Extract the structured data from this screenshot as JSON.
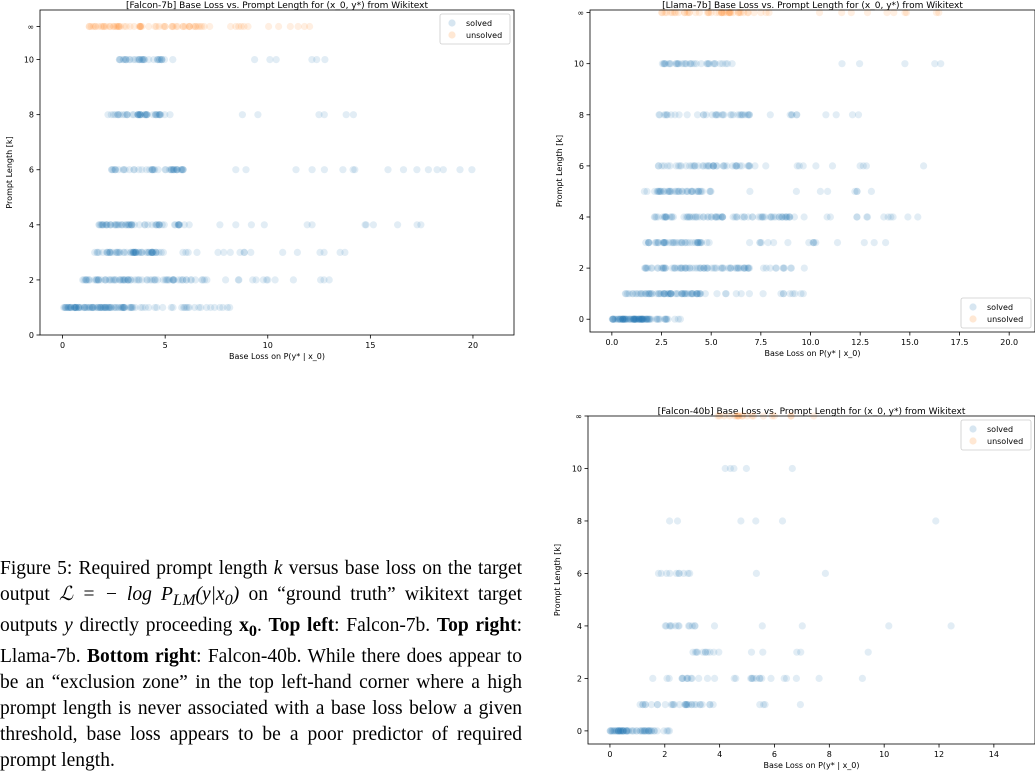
{
  "caption": {
    "figure_label": "Figure 5:",
    "text_1": "Required prompt length",
    "k_var": "k",
    "text_2": "versus base loss on the target output",
    "formula": "ℒ = − log P",
    "formula_sub": "LM",
    "formula_end": "(y|x",
    "formula_sub0": "0",
    "formula_close": ")",
    "text_3": "on “ground truth” wikitext target outputs",
    "y_var": "y",
    "text_4": "directly proceeding",
    "x0_var": "x",
    "x0_sub": "0",
    "text_5": ".",
    "top_left_label": "Top left",
    "top_left_value": ": Falcon-7b.",
    "top_right_label": "Top right",
    "top_right_value": ": Llama-7b.",
    "bottom_right_label": "Bottom right",
    "bottom_right_value": ": Falcon-40b.",
    "text_6": "While there does appear to be an “exclusion zone” in the top left-hand corner where a high prompt length is never associated with a base loss below a given threshold, base loss appears to be a poor predictor of required prompt length."
  },
  "colors": {
    "solved": "#1f77b4",
    "unsolved": "#ff7f0e"
  },
  "chart_data": [
    {
      "type": "scatter",
      "title": "[Falcon-7b] Base Loss vs. Prompt Length for (x_0, y*) from Wikitext",
      "xlabel": "Base Loss on P(y* | x_0)",
      "ylabel": "Prompt Length [k]",
      "xlim": [
        -1.1,
        22.0
      ],
      "ylim": [
        0,
        11.8
      ],
      "xticks": [
        0,
        5,
        10,
        15,
        20
      ],
      "xtick_labels": [
        "0",
        "5",
        "10",
        "15",
        "20"
      ],
      "yticks": [
        0,
        2,
        4,
        6,
        8,
        10,
        11.2
      ],
      "ytick_labels": [
        "0",
        "2",
        "4",
        "6",
        "8",
        "10",
        "∞"
      ],
      "legend": [
        "solved",
        "unsolved"
      ],
      "legend_position": "top-right",
      "series": [
        {
          "name": "solved",
          "rows": [
            {
              "y": 1,
              "from": 0.0,
              "to": 8.5,
              "count": 110,
              "dense_to": 3.5
            },
            {
              "y": 2,
              "from": 0.9,
              "to": 13.5,
              "count": 90,
              "dense_to": 6.5
            },
            {
              "y": 3,
              "from": 1.4,
              "to": 15.5,
              "count": 75,
              "dense_to": 5.0
            },
            {
              "y": 4,
              "from": 1.7,
              "to": 17.5,
              "count": 70,
              "dense_to": 6.0
            },
            {
              "y": 6,
              "from": 2.3,
              "to": 21.0,
              "count": 60,
              "dense_to": 6.0
            },
            {
              "y": 8,
              "from": 2.2,
              "to": 14.5,
              "count": 50,
              "dense_to": 5.0
            },
            {
              "y": 10,
              "from": 2.7,
              "to": 13.0,
              "count": 40,
              "dense_to": 5.0
            }
          ]
        },
        {
          "name": "unsolved",
          "rows": [
            {
              "y": 11.2,
              "from": 1.2,
              "to": 12.5,
              "count": 70,
              "dense_to": 7.0
            }
          ]
        }
      ]
    },
    {
      "type": "scatter",
      "title": "[Llama-7b] Base Loss vs. Prompt Length for (x_0, y*) from Wikitext",
      "xlabel": "Base Loss on P(y* | x_0)",
      "ylabel": "Prompt Length [k]",
      "xlim": [
        -1.1,
        21.3
      ],
      "ylim": [
        -0.5,
        12.1
      ],
      "xticks": [
        0,
        2.5,
        5,
        7.5,
        10,
        12.5,
        15,
        17.5,
        20
      ],
      "xtick_labels": [
        "0.0",
        "2.5",
        "5.0",
        "7.5",
        "10.0",
        "12.5",
        "15.0",
        "17.5",
        "20.0"
      ],
      "yticks": [
        0,
        2,
        4,
        6,
        8,
        10,
        12
      ],
      "ytick_labels": [
        "0",
        "2",
        "4",
        "6",
        "8",
        "10",
        "∞"
      ],
      "legend": [
        "solved",
        "unsolved"
      ],
      "legend_position": "bottom-right",
      "series": [
        {
          "name": "solved",
          "rows": [
            {
              "y": 0,
              "from": 0.0,
              "to": 3.5,
              "count": 90,
              "dense_to": 2.0
            },
            {
              "y": 1,
              "from": 0.6,
              "to": 9.8,
              "count": 80,
              "dense_to": 4.5
            },
            {
              "y": 2,
              "from": 1.5,
              "to": 10.5,
              "count": 80,
              "dense_to": 7.0
            },
            {
              "y": 3,
              "from": 1.4,
              "to": 14.0,
              "count": 60,
              "dense_to": 5.0
            },
            {
              "y": 4,
              "from": 2.0,
              "to": 15.5,
              "count": 90,
              "dense_to": 9.0
            },
            {
              "y": 5,
              "from": 1.6,
              "to": 14.0,
              "count": 50,
              "dense_to": 5.0
            },
            {
              "y": 6,
              "from": 2.3,
              "to": 16.0,
              "count": 55,
              "dense_to": 7.0
            },
            {
              "y": 8,
              "from": 2.3,
              "to": 13.0,
              "count": 45,
              "dense_to": 7.0
            },
            {
              "y": 10,
              "from": 2.3,
              "to": 17.0,
              "count": 40,
              "dense_to": 6.0
            }
          ]
        },
        {
          "name": "unsolved",
          "rows": [
            {
              "y": 12,
              "from": 2.3,
              "to": 17.0,
              "count": 55,
              "dense_to": 8.0
            }
          ]
        }
      ]
    },
    {
      "type": "scatter",
      "title": "[Falcon-40b] Base Loss vs. Prompt Length for (x_0, y*) from Wikitext",
      "xlabel": "Base Loss on P(y* | x_0)",
      "ylabel": "Prompt Length [k]",
      "xlim": [
        -0.8,
        15.5
      ],
      "ylim": [
        -0.5,
        12.0
      ],
      "xticks": [
        0,
        2,
        4,
        6,
        8,
        10,
        12,
        14
      ],
      "xtick_labels": [
        "0",
        "2",
        "4",
        "6",
        "8",
        "10",
        "12",
        "14"
      ],
      "yticks": [
        0,
        2,
        4,
        6,
        8,
        10,
        12
      ],
      "ytick_labels": [
        "0",
        "2",
        "4",
        "6",
        "8",
        "10",
        "∞"
      ],
      "legend": [
        "solved",
        "unsolved"
      ],
      "legend_position": "top-right",
      "series": [
        {
          "name": "solved",
          "rows": [
            {
              "y": 0,
              "from": 0.0,
              "to": 2.2,
              "count": 60,
              "dense_to": 1.5
            },
            {
              "y": 1,
              "from": 1.0,
              "to": 7.0,
              "count": 35,
              "dense_to": 4.0
            },
            {
              "y": 2,
              "from": 1.2,
              "to": 9.6,
              "count": 30,
              "dense_to": 6.0
            },
            {
              "y": 3,
              "from": 2.7,
              "to": 10.0,
              "count": 16,
              "dense_to": 4.0
            },
            {
              "y": 4,
              "from": 2.0,
              "to": 14.8,
              "count": 18,
              "dense_to": 4.0
            },
            {
              "y": 6,
              "from": 1.5,
              "to": 12.0,
              "count": 12,
              "dense_to": 3.0
            },
            {
              "y": 8,
              "from": 2.0,
              "to": 14.0,
              "count": 6,
              "dense_to": 3.0
            },
            {
              "y": 10,
              "from": 4.2,
              "to": 8.6,
              "count": 5,
              "dense_to": 5.0
            }
          ]
        },
        {
          "name": "unsolved",
          "rows": [
            {
              "y": 12,
              "from": 3.7,
              "to": 7.8,
              "count": 20,
              "dense_to": 6.0
            }
          ]
        }
      ]
    }
  ]
}
